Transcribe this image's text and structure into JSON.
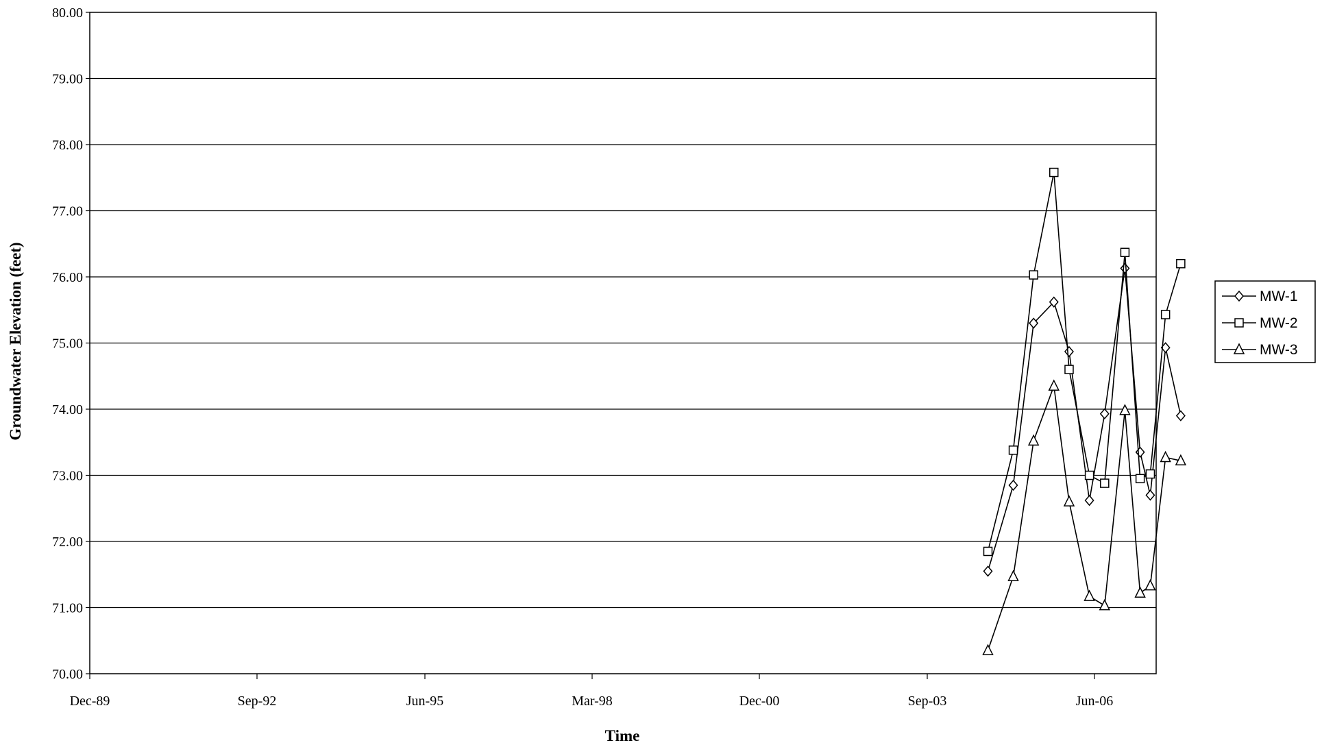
{
  "chart_data": {
    "type": "line",
    "xlabel": "Time",
    "ylabel": "Groundwater Elevation (feet)",
    "ylim": [
      70,
      80
    ],
    "y_ticks": [
      "70.00",
      "71.00",
      "72.00",
      "73.00",
      "74.00",
      "75.00",
      "76.00",
      "77.00",
      "78.00",
      "79.00",
      "80.00"
    ],
    "x_ticks": [
      "Dec-89",
      "Sep-92",
      "Jun-95",
      "Mar-98",
      "Dec-00",
      "Sep-03",
      "Jun-06"
    ],
    "xlim": [
      "1989-12",
      "2007-08"
    ],
    "grid": "horizontal",
    "legend_position": "right",
    "series": [
      {
        "name": "MW-1",
        "marker": "diamond",
        "x": [
          "2004-09",
          "2005-02",
          "2005-06",
          "2005-10",
          "2006-01",
          "2006-05",
          "2006-08",
          "2006-12",
          "2007-03",
          "2007-05",
          "2007-08",
          "2007-11"
        ],
        "values": [
          71.55,
          72.85,
          75.3,
          75.62,
          74.87,
          72.62,
          73.93,
          76.13,
          73.35,
          72.7,
          74.93,
          73.9
        ]
      },
      {
        "name": "MW-2",
        "marker": "square",
        "x": [
          "2004-09",
          "2005-02",
          "2005-06",
          "2005-10",
          "2006-01",
          "2006-05",
          "2006-08",
          "2006-12",
          "2007-03",
          "2007-05",
          "2007-08",
          "2007-11"
        ],
        "values": [
          71.85,
          73.38,
          76.03,
          77.58,
          74.6,
          73.0,
          72.88,
          76.37,
          72.95,
          73.02,
          75.43,
          76.2
        ]
      },
      {
        "name": "MW-3",
        "marker": "triangle",
        "x": [
          "2004-09",
          "2005-02",
          "2005-06",
          "2005-10",
          "2006-01",
          "2006-05",
          "2006-08",
          "2006-12",
          "2007-03",
          "2007-05",
          "2007-08",
          "2007-11"
        ],
        "values": [
          70.35,
          71.47,
          73.52,
          74.35,
          72.6,
          71.17,
          71.03,
          73.98,
          71.22,
          71.33,
          73.27,
          73.22
        ]
      }
    ]
  }
}
